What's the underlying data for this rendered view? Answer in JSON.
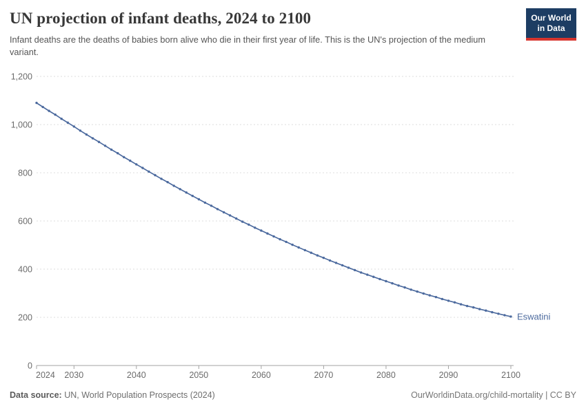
{
  "header": {
    "title": "UN projection of infant deaths, 2024 to 2100",
    "subtitle": "Infant deaths are the deaths of babies born alive who die in their first year of life. This is the UN's projection of the medium variant.",
    "logo": {
      "line1": "Our World",
      "line2": "in Data"
    }
  },
  "footer": {
    "source_label": "Data source:",
    "source_value": " UN, World Population Prospects (2024)",
    "link": "OurWorldinData.org/child-mortality | CC BY"
  },
  "colors": {
    "line": "#4c6a9e",
    "entity_label": "#4c6a9e",
    "grid": "#dcdcdc",
    "axis": "#a3a3a3",
    "tick_text": "#6b6b6b",
    "logo_navy": "#1d3d63",
    "logo_red": "#d8352e"
  },
  "chart_data": {
    "type": "line",
    "title": "UN projection of infant deaths, 2024 to 2100",
    "xlabel": "",
    "ylabel": "",
    "xlim": [
      2024,
      2100
    ],
    "ylim": [
      0,
      1200
    ],
    "grid": "horizontal-dashed",
    "legend_position": "line-end-label",
    "xticks": [
      2024,
      2030,
      2040,
      2050,
      2060,
      2070,
      2080,
      2090,
      2100
    ],
    "yticks": [
      {
        "value": 0,
        "label": "0"
      },
      {
        "value": 200,
        "label": "200"
      },
      {
        "value": 400,
        "label": "400"
      },
      {
        "value": 600,
        "label": "600"
      },
      {
        "value": 800,
        "label": "800"
      },
      {
        "value": 1000,
        "label": "1,000"
      },
      {
        "value": 1200,
        "label": "1,200"
      }
    ],
    "x": [
      2024,
      2025,
      2026,
      2027,
      2028,
      2029,
      2030,
      2031,
      2032,
      2033,
      2034,
      2035,
      2036,
      2037,
      2038,
      2039,
      2040,
      2041,
      2042,
      2043,
      2044,
      2045,
      2046,
      2047,
      2048,
      2049,
      2050,
      2051,
      2052,
      2053,
      2054,
      2055,
      2056,
      2057,
      2058,
      2059,
      2060,
      2061,
      2062,
      2063,
      2064,
      2065,
      2066,
      2067,
      2068,
      2069,
      2070,
      2071,
      2072,
      2073,
      2074,
      2075,
      2076,
      2077,
      2078,
      2079,
      2080,
      2081,
      2082,
      2083,
      2084,
      2085,
      2086,
      2087,
      2088,
      2089,
      2090,
      2091,
      2092,
      2093,
      2094,
      2095,
      2096,
      2097,
      2098,
      2099,
      2100
    ],
    "series": [
      {
        "name": "Eswatini",
        "values": [
          1090,
          1073,
          1057,
          1041,
          1024,
          1008,
          992,
          975,
          959,
          943,
          928,
          912,
          896,
          881,
          865,
          850,
          835,
          820,
          805,
          790,
          775,
          761,
          746,
          732,
          718,
          704,
          690,
          676,
          663,
          649,
          636,
          623,
          610,
          597,
          585,
          572,
          560,
          548,
          536,
          524,
          513,
          501,
          490,
          479,
          468,
          457,
          447,
          436,
          426,
          416,
          406,
          396,
          386,
          377,
          368,
          359,
          350,
          341,
          332,
          324,
          315,
          307,
          299,
          291,
          284,
          276,
          269,
          262,
          254,
          247,
          241,
          234,
          228,
          221,
          215,
          209,
          203
        ]
      }
    ]
  }
}
